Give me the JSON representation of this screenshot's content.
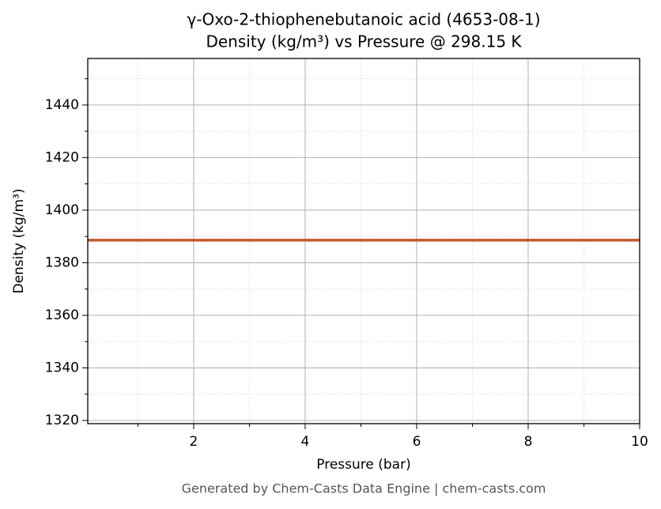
{
  "chart_data": {
    "type": "line",
    "title": "γ-Oxo-2-thiophenebutanoic acid (4653-08-1)",
    "subtitle": "Density (kg/m³) vs Pressure @ 298.15 K",
    "xlabel": "Pressure (bar)",
    "ylabel": "Density (kg/m³)",
    "footer": "Generated by Chem-Casts Data Engine | chem-casts.com",
    "x": [
      0.1,
      10
    ],
    "series": [
      {
        "name": "Density",
        "color": "#c9562c",
        "values": [
          1388.6,
          1388.6
        ]
      }
    ],
    "xlim": [
      0.1,
      10
    ],
    "ylim": [
      1318.8,
      1457.7
    ],
    "xticks": [
      2,
      4,
      6,
      8,
      10
    ],
    "yticks": [
      1320,
      1340,
      1360,
      1380,
      1400,
      1420,
      1440
    ],
    "xminorticks": [
      1,
      3,
      5,
      7,
      9
    ],
    "yminorticks": [
      1330,
      1350,
      1370,
      1390,
      1410,
      1430,
      1450
    ],
    "grid": true
  }
}
